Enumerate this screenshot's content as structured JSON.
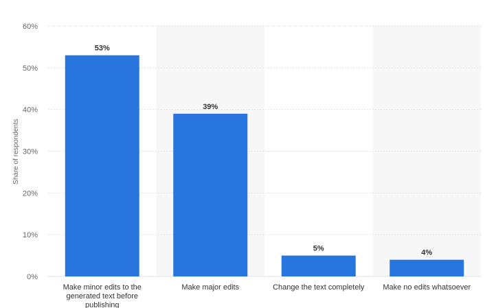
{
  "chart_data": {
    "type": "bar",
    "categories": [
      [
        "Make minor edits to the",
        "generated text before",
        "publishing"
      ],
      [
        "Make major edits"
      ],
      [
        "Change the text completely"
      ],
      [
        "Make no edits whatsoever"
      ]
    ],
    "values": [
      53,
      39,
      5,
      4
    ],
    "value_labels": [
      "53%",
      "39%",
      "5%",
      "4%"
    ],
    "ylabel": "Share of respondents",
    "ylim": [
      0,
      60
    ],
    "yticks": [
      0,
      10,
      20,
      30,
      40,
      50,
      60
    ],
    "ytick_labels": [
      "0%",
      "10%",
      "20%",
      "30%",
      "40%",
      "50%",
      "60%"
    ],
    "grid": true,
    "alternating_column_shading": true,
    "colors": {
      "bar": "#2876dd",
      "grid": "#e2e2e2",
      "band": "#f7f7f7"
    }
  }
}
